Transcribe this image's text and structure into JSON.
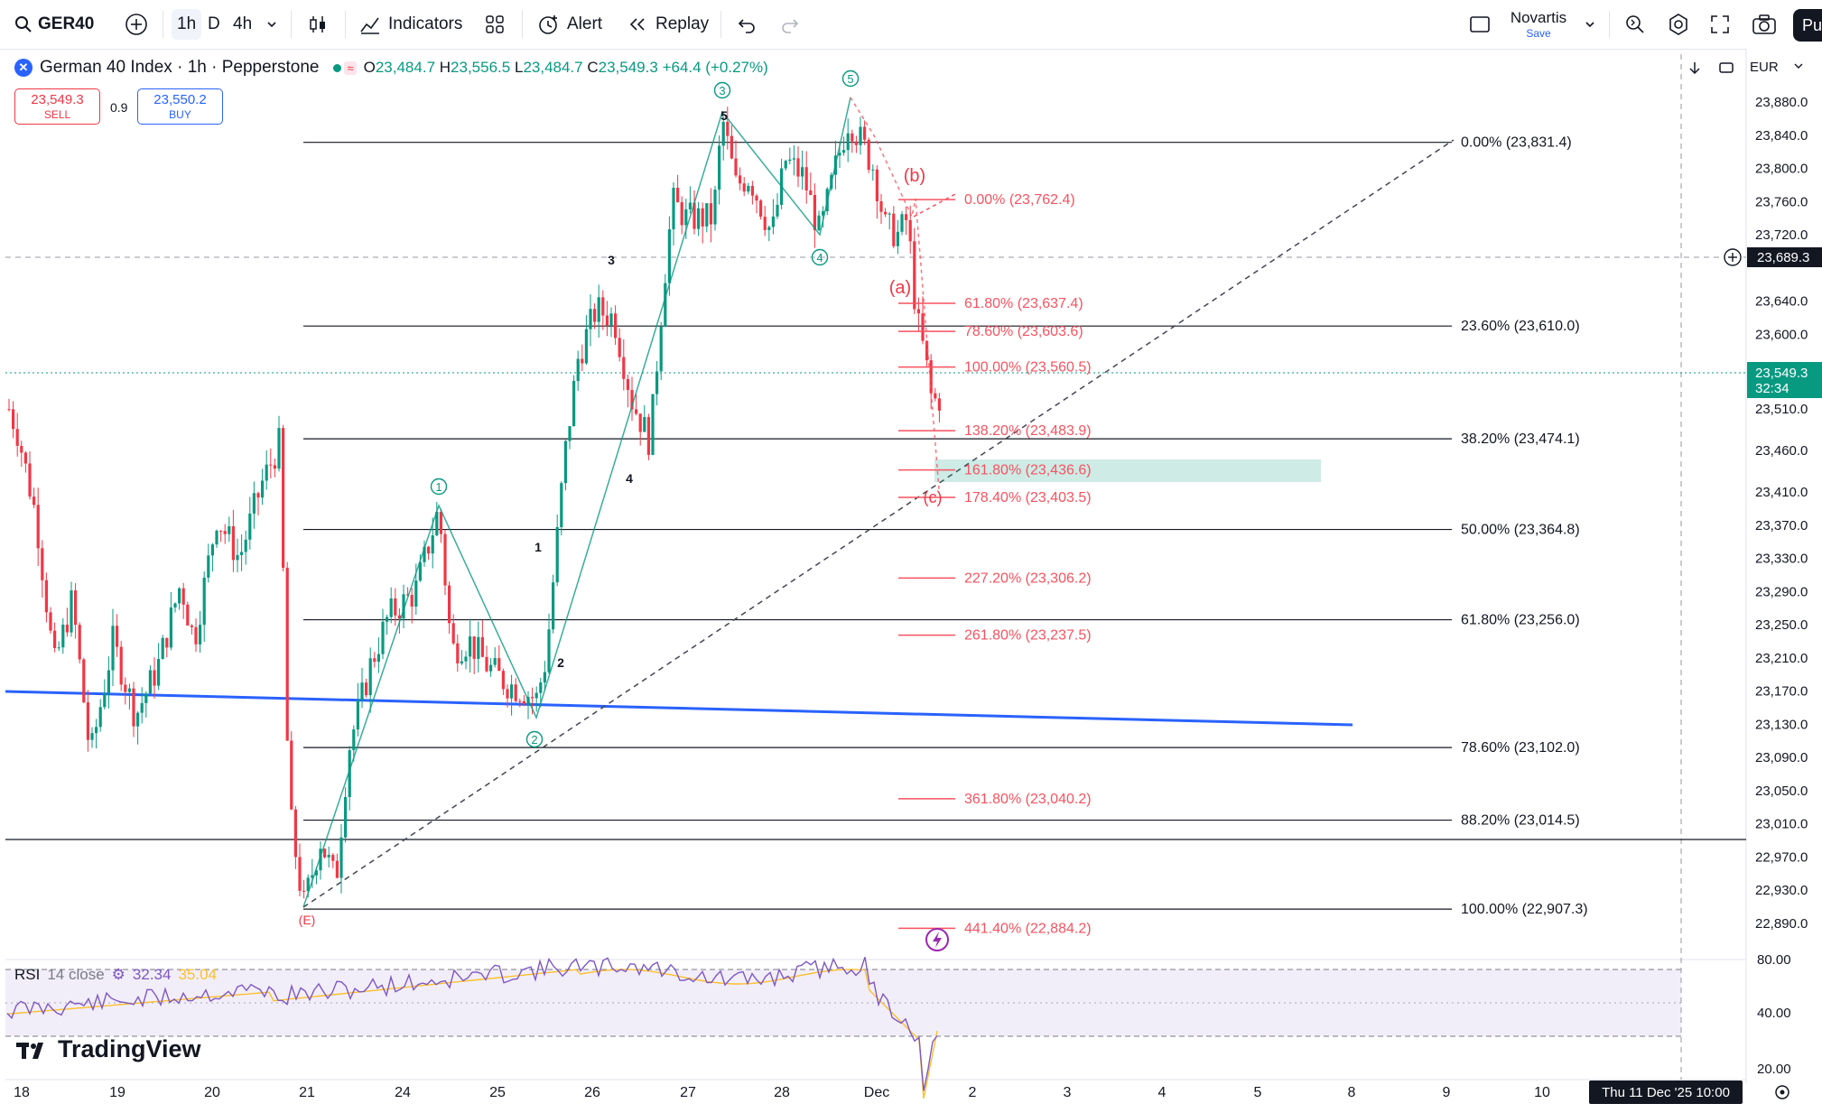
{
  "toolbar": {
    "symbol": "GER40",
    "interval_1h": "1h",
    "interval_d": "D",
    "interval_4h": "4h",
    "indicators_label": "Indicators",
    "alert_label": "Alert",
    "replay_label": "Replay",
    "layout_name": "Novartis",
    "layout_status": "Save",
    "publish_label": "Pu"
  },
  "legend": {
    "title": "German 40 Index · 1h · Pepperstone",
    "o_label": "O",
    "o": "23,484.7",
    "h_label": "H",
    "h": "23,556.5",
    "l_label": "L",
    "l": "23,484.7",
    "c_label": "C",
    "c": "23,549.3",
    "change": "+64.4 (+0.27%)"
  },
  "trade": {
    "sell_price": "23,549.3",
    "sell_label": "SELL",
    "spread": "0.9",
    "buy_price": "23,550.2",
    "buy_label": "BUY"
  },
  "currency": "EUR",
  "rsi": {
    "label": "RSI",
    "params": "14 close",
    "value": "32.34",
    "ma_value": "35.04"
  },
  "branding": "TradingView",
  "crosshair_time": "Thu 11 Dec '25   10:00",
  "colors": {
    "up": "#089981",
    "down": "#f23645",
    "fib_red": "#f7525f",
    "trend_blue": "#2962ff",
    "rsi_purple": "#7e57c2",
    "rsi_ma": "#fbc02d"
  },
  "chart_data": {
    "type": "candlestick",
    "title": "German 40 Index · 1h · Pepperstone",
    "y_axis": {
      "ticks": [
        "23,880.0",
        "23,840.0",
        "23,800.0",
        "23,760.0",
        "23,720.0",
        "23,640.0",
        "23,600.0",
        "23,510.0",
        "23,460.0",
        "23,410.0",
        "23,370.0",
        "23,330.0",
        "23,290.0",
        "23,250.0",
        "23,210.0",
        "23,170.0",
        "23,130.0",
        "23,090.0",
        "23,050.0",
        "23,010.0",
        "22,970.0",
        "22,930.0",
        "22,890.0"
      ],
      "current_price": "23,549.3",
      "countdown": "32:34",
      "crosshair_price": "23,689.3"
    },
    "x_axis": {
      "ticks": [
        "18",
        "19",
        "20",
        "21",
        "24",
        "25",
        "26",
        "27",
        "28",
        "Dec",
        "2",
        "3",
        "4",
        "5",
        "8",
        "9",
        "10"
      ]
    },
    "fib_retracement_black": [
      {
        "level": "0.00%",
        "price": "(23,831.4)"
      },
      {
        "level": "23.60%",
        "price": "(23,610.0)"
      },
      {
        "level": "38.20%",
        "price": "(23,474.1)"
      },
      {
        "level": "50.00%",
        "price": "(23,364.8)"
      },
      {
        "level": "61.80%",
        "price": "(23,256.0)"
      },
      {
        "level": "78.60%",
        "price": "(23,102.0)"
      },
      {
        "level": "88.20%",
        "price": "(23,014.5)"
      },
      {
        "level": "100.00%",
        "price": "(22,907.3)"
      }
    ],
    "fib_extension_red": [
      {
        "level": "0.00%",
        "price": "(23,762.4)"
      },
      {
        "level": "61.80%",
        "price": "(23,637.4)"
      },
      {
        "level": "78.60%",
        "price": "(23,603.6)"
      },
      {
        "level": "100.00%",
        "price": "(23,560.5)"
      },
      {
        "level": "138.20%",
        "price": "(23,483.9)"
      },
      {
        "level": "161.80%",
        "price": "(23,436.6)"
      },
      {
        "level": "178.40%",
        "price": "(23,403.5)"
      },
      {
        "level": "227.20%",
        "price": "(23,306.2)"
      },
      {
        "level": "261.80%",
        "price": "(23,237.5)"
      },
      {
        "level": "361.80%",
        "price": "(23,040.2)"
      },
      {
        "level": "441.40%",
        "price": "(22,884.2)"
      }
    ],
    "wave_labels_circled": [
      "1",
      "2",
      "3",
      "4",
      "5"
    ],
    "wave_labels_plain": [
      "1",
      "2",
      "3",
      "4",
      "5"
    ],
    "correction_labels": [
      "(a)",
      "(b)",
      "(c)",
      "(E)"
    ],
    "rsi_axis_ticks": [
      "80.00",
      "40.00",
      "20.00"
    ]
  }
}
